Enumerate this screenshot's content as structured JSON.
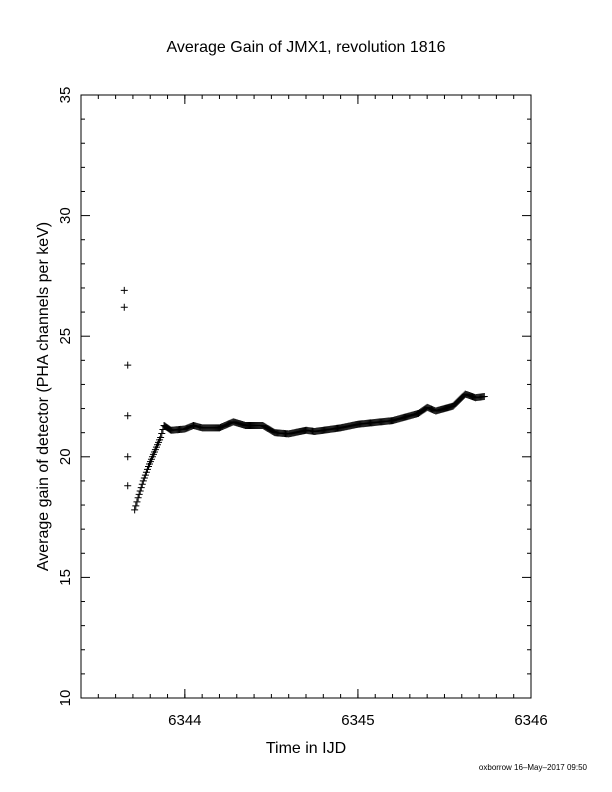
{
  "chart_data": {
    "type": "scatter",
    "title": "Average Gain of JMX1, revolution 1816",
    "xlabel": "Time in IJD",
    "ylabel": "Average gain of detector (PHA channels per keV)",
    "xlim": [
      6343.4,
      6346.0
    ],
    "ylim": [
      10,
      35
    ],
    "x_ticks": [
      6344,
      6345,
      6346
    ],
    "x_tick_labels": [
      "6344",
      "6345",
      "6346"
    ],
    "y_ticks": [
      10,
      15,
      20,
      25,
      30,
      35
    ],
    "y_tick_labels": [
      "10",
      "15",
      "20",
      "25",
      "30",
      "35"
    ],
    "x_minor_step": 0.1,
    "y_minor_step": 1,
    "marker": "plus",
    "grid": false,
    "legend": "none",
    "outliers": [
      {
        "x": 6343.65,
        "y": 26.9
      },
      {
        "x": 6343.65,
        "y": 26.2
      },
      {
        "x": 6343.67,
        "y": 23.8
      },
      {
        "x": 6343.67,
        "y": 21.7
      },
      {
        "x": 6343.67,
        "y": 20.0
      },
      {
        "x": 6343.67,
        "y": 18.8
      }
    ],
    "trend": [
      {
        "x": 6343.71,
        "y": 17.8
      },
      {
        "x": 6343.73,
        "y": 18.3
      },
      {
        "x": 6343.76,
        "y": 19.0
      },
      {
        "x": 6343.79,
        "y": 19.6
      },
      {
        "x": 6343.83,
        "y": 20.3
      },
      {
        "x": 6343.86,
        "y": 20.8
      },
      {
        "x": 6343.88,
        "y": 21.3
      },
      {
        "x": 6343.92,
        "y": 21.1
      },
      {
        "x": 6344.0,
        "y": 21.15
      },
      {
        "x": 6344.05,
        "y": 21.3
      },
      {
        "x": 6344.1,
        "y": 21.2
      },
      {
        "x": 6344.2,
        "y": 21.2
      },
      {
        "x": 6344.28,
        "y": 21.45
      },
      {
        "x": 6344.35,
        "y": 21.3
      },
      {
        "x": 6344.45,
        "y": 21.3
      },
      {
        "x": 6344.52,
        "y": 21.0
      },
      {
        "x": 6344.6,
        "y": 20.95
      },
      {
        "x": 6344.7,
        "y": 21.1
      },
      {
        "x": 6344.75,
        "y": 21.05
      },
      {
        "x": 6344.9,
        "y": 21.2
      },
      {
        "x": 6345.0,
        "y": 21.35
      },
      {
        "x": 6345.2,
        "y": 21.5
      },
      {
        "x": 6345.35,
        "y": 21.8
      },
      {
        "x": 6345.4,
        "y": 22.05
      },
      {
        "x": 6345.45,
        "y": 21.9
      },
      {
        "x": 6345.55,
        "y": 22.1
      },
      {
        "x": 6345.62,
        "y": 22.6
      },
      {
        "x": 6345.68,
        "y": 22.45
      },
      {
        "x": 6345.73,
        "y": 22.5
      }
    ]
  },
  "footer": {
    "credit": "oxborrow 16–May–2017 09:50"
  }
}
